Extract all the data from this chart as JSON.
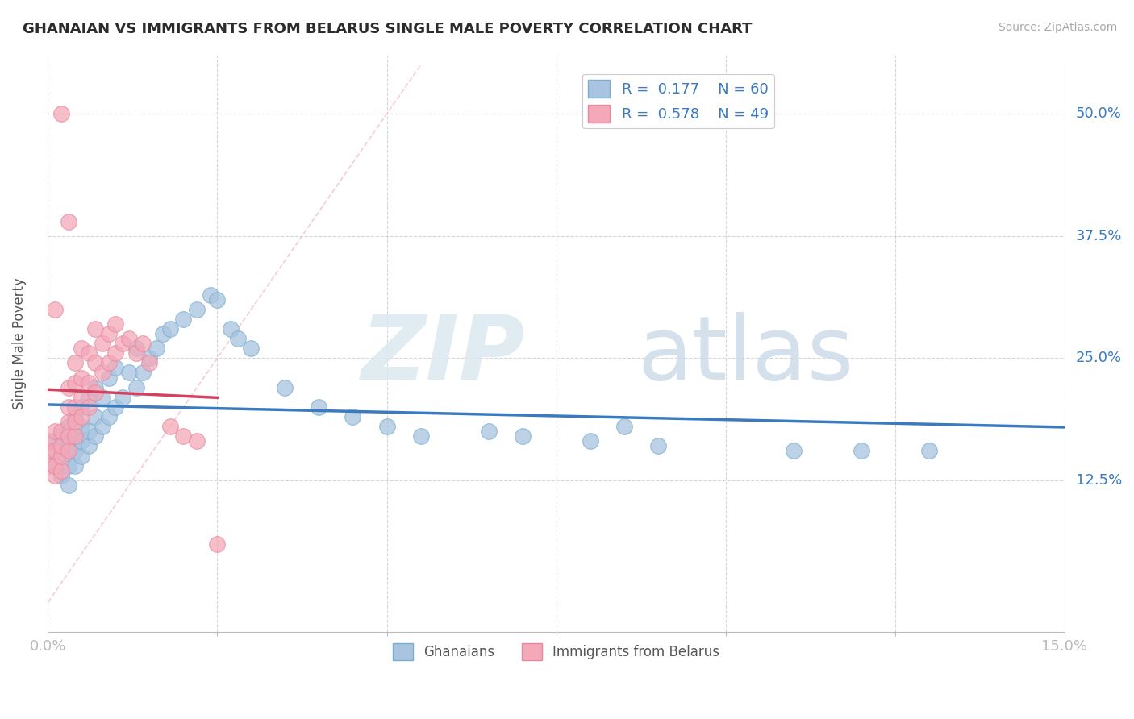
{
  "title": "GHANAIAN VS IMMIGRANTS FROM BELARUS SINGLE MALE POVERTY CORRELATION CHART",
  "source": "Source: ZipAtlas.com",
  "ylabel": "Single Male Poverty",
  "ytick_vals": [
    0.125,
    0.25,
    0.375,
    0.5
  ],
  "ytick_labels": [
    "12.5%",
    "25.0%",
    "37.5%",
    "50.0%"
  ],
  "xlim": [
    0.0,
    0.15
  ],
  "ylim": [
    -0.03,
    0.56
  ],
  "blue_color": "#a8c4e0",
  "pink_color": "#f4a8b8",
  "blue_edge": "#7aaed0",
  "pink_edge": "#e888a0",
  "trend_blue": "#3a7abf",
  "trend_pink": "#d44060",
  "watermark_zip": "ZIP",
  "watermark_atlas": "atlas",
  "blue_r": "0.177",
  "blue_n": "60",
  "pink_r": "0.578",
  "pink_n": "49",
  "blue_scatter_x": [
    0.0,
    0.001,
    0.001,
    0.002,
    0.002,
    0.002,
    0.003,
    0.003,
    0.003,
    0.003,
    0.003,
    0.004,
    0.004,
    0.004,
    0.004,
    0.005,
    0.005,
    0.005,
    0.005,
    0.006,
    0.006,
    0.006,
    0.007,
    0.007,
    0.007,
    0.008,
    0.008,
    0.009,
    0.009,
    0.01,
    0.01,
    0.011,
    0.012,
    0.013,
    0.013,
    0.014,
    0.015,
    0.016,
    0.017,
    0.018,
    0.02,
    0.022,
    0.024,
    0.025,
    0.027,
    0.028,
    0.03,
    0.035,
    0.04,
    0.045,
    0.05,
    0.055,
    0.065,
    0.07,
    0.08,
    0.085,
    0.09,
    0.11,
    0.12,
    0.13
  ],
  "blue_scatter_y": [
    0.155,
    0.14,
    0.165,
    0.13,
    0.15,
    0.17,
    0.12,
    0.14,
    0.155,
    0.17,
    0.18,
    0.14,
    0.155,
    0.17,
    0.19,
    0.15,
    0.165,
    0.18,
    0.2,
    0.16,
    0.175,
    0.21,
    0.17,
    0.19,
    0.22,
    0.18,
    0.21,
    0.19,
    0.23,
    0.2,
    0.24,
    0.21,
    0.235,
    0.22,
    0.26,
    0.235,
    0.25,
    0.26,
    0.275,
    0.28,
    0.29,
    0.3,
    0.315,
    0.31,
    0.28,
    0.27,
    0.26,
    0.22,
    0.2,
    0.19,
    0.18,
    0.17,
    0.175,
    0.17,
    0.165,
    0.18,
    0.16,
    0.155,
    0.155,
    0.155
  ],
  "pink_scatter_x": [
    0.0,
    0.0,
    0.0,
    0.001,
    0.001,
    0.001,
    0.001,
    0.002,
    0.002,
    0.002,
    0.002,
    0.002,
    0.003,
    0.003,
    0.003,
    0.003,
    0.003,
    0.004,
    0.004,
    0.004,
    0.004,
    0.004,
    0.005,
    0.005,
    0.005,
    0.005,
    0.006,
    0.006,
    0.006,
    0.007,
    0.007,
    0.007,
    0.008,
    0.008,
    0.009,
    0.009,
    0.01,
    0.01,
    0.011,
    0.012,
    0.013,
    0.014,
    0.015,
    0.018,
    0.02,
    0.022,
    0.025,
    0.003,
    0.001
  ],
  "pink_scatter_y": [
    0.14,
    0.155,
    0.165,
    0.13,
    0.14,
    0.155,
    0.175,
    0.135,
    0.15,
    0.16,
    0.175,
    0.5,
    0.155,
    0.17,
    0.185,
    0.2,
    0.22,
    0.17,
    0.185,
    0.2,
    0.225,
    0.245,
    0.19,
    0.21,
    0.23,
    0.26,
    0.2,
    0.225,
    0.255,
    0.215,
    0.245,
    0.28,
    0.235,
    0.265,
    0.245,
    0.275,
    0.255,
    0.285,
    0.265,
    0.27,
    0.255,
    0.265,
    0.245,
    0.18,
    0.17,
    0.165,
    0.06,
    0.39,
    0.3
  ],
  "ref_line_x": [
    0.0,
    0.055
  ],
  "ref_line_y": [
    0.0,
    0.55
  ]
}
